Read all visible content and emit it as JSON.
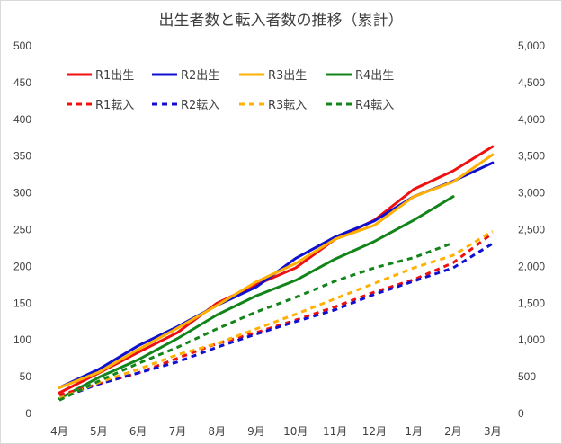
{
  "chart_data": {
    "type": "line",
    "title": "出生者数と転入者数の推移（累計）",
    "categories": [
      "4月",
      "5月",
      "6月",
      "7月",
      "8月",
      "9月",
      "10月",
      "11月",
      "12月",
      "1月",
      "2月",
      "3月"
    ],
    "y_left": {
      "range": [
        0,
        500
      ],
      "ticks": [
        "0",
        "50",
        "100",
        "150",
        "200",
        "250",
        "300",
        "350",
        "400",
        "450",
        "500"
      ]
    },
    "y_right": {
      "range": [
        0,
        5000
      ],
      "ticks": [
        "0",
        "500",
        "1,000",
        "1,500",
        "2,000",
        "2,500",
        "3,000",
        "3,500",
        "4,000",
        "4,500",
        "5,000"
      ]
    },
    "grid": false,
    "legend_position": "top-left, two rows",
    "series": [
      {
        "name": "R1出生",
        "axis": "left",
        "style": "solid",
        "color": "#ee1111",
        "values": [
          28,
          55,
          83,
          110,
          150,
          175,
          198,
          237,
          263,
          305,
          330,
          363
        ]
      },
      {
        "name": "R2出生",
        "axis": "left",
        "style": "solid",
        "color": "#1010d0",
        "values": [
          35,
          60,
          92,
          118,
          147,
          172,
          211,
          240,
          262,
          295,
          316,
          341
        ]
      },
      {
        "name": "R3出生",
        "axis": "left",
        "style": "solid",
        "color": "#ffb000",
        "values": [
          35,
          56,
          87,
          116,
          147,
          179,
          204,
          237,
          256,
          295,
          315,
          352
        ]
      },
      {
        "name": "R4出生",
        "axis": "left",
        "style": "solid",
        "color": "#12841a",
        "values": [
          20,
          49,
          73,
          102,
          134,
          160,
          181,
          210,
          234,
          263,
          295,
          null
        ]
      },
      {
        "name": "R1転入",
        "axis": "right",
        "style": "dashed",
        "color": "#ee1111",
        "values": [
          250,
          400,
          550,
          750,
          950,
          1100,
          1270,
          1450,
          1650,
          1820,
          2050,
          2450
        ]
      },
      {
        "name": "R2転入",
        "axis": "right",
        "style": "dashed",
        "color": "#1010d0",
        "values": [
          200,
          400,
          550,
          700,
          900,
          1080,
          1250,
          1410,
          1620,
          1800,
          1980,
          2310
        ]
      },
      {
        "name": "R3転入",
        "axis": "right",
        "style": "dashed",
        "color": "#ffb000",
        "values": [
          200,
          420,
          600,
          800,
          950,
          1150,
          1350,
          1560,
          1770,
          1980,
          2150,
          2480
        ]
      },
      {
        "name": "R4転入",
        "axis": "right",
        "style": "dashed",
        "color": "#12841a",
        "values": [
          180,
          440,
          680,
          900,
          1150,
          1380,
          1580,
          1800,
          1980,
          2120,
          2320,
          null
        ]
      }
    ]
  }
}
